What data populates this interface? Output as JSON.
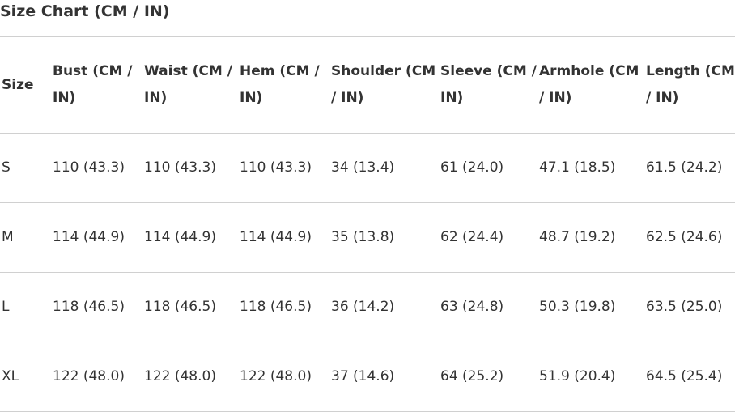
{
  "title": "Size Chart (CM / IN)",
  "table": {
    "header": [
      "Size",
      "Bust (CM / IN)",
      "Waist (CM / IN)",
      "Hem (CM / IN)",
      "Shoulder (CM / IN)",
      "Sleeve (CM / IN)",
      "Armhole (CM / IN)",
      "Length (CM / IN)"
    ],
    "rows": [
      [
        "S",
        "110 (43.3)",
        "110 (43.3)",
        "110 (43.3)",
        "34 (13.4)",
        "61 (24.0)",
        "47.1 (18.5)",
        "61.5 (24.2)"
      ],
      [
        "M",
        "114 (44.9)",
        "114 (44.9)",
        "114 (44.9)",
        "35 (13.8)",
        "62 (24.4)",
        "48.7 (19.2)",
        "62.5 (24.6)"
      ],
      [
        "L",
        "118 (46.5)",
        "118 (46.5)",
        "118 (46.5)",
        "36 (14.2)",
        "63 (24.8)",
        "50.3 (19.8)",
        "63.5 (25.0)"
      ],
      [
        "XL",
        "122 (48.0)",
        "122 (48.0)",
        "122 (48.0)",
        "37 (14.6)",
        "64 (25.2)",
        "51.9 (20.4)",
        "64.5 (25.4)"
      ]
    ]
  }
}
